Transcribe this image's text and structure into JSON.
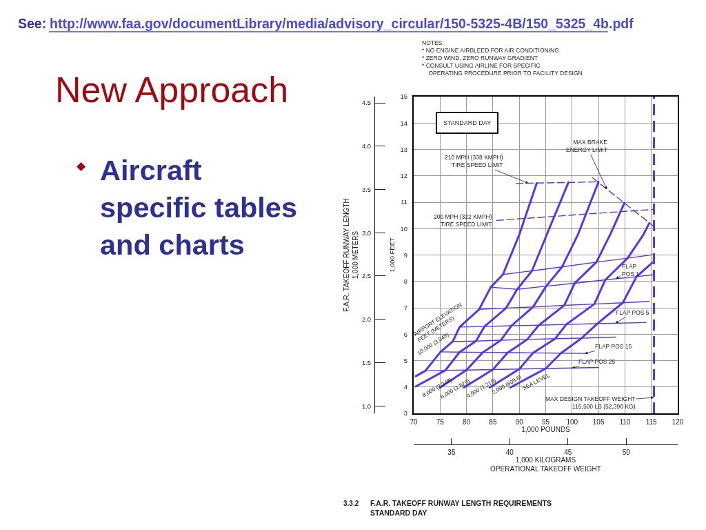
{
  "chart_data": {
    "type": "line",
    "title": "New Approach",
    "xlabel": "1,000 POUNDS",
    "ylabel": "1,000 FEET",
    "y2label": "F.A.R. TAKEOFF RUNWAY LENGTH\n1,000 METERS",
    "x2label": "1,000 KILOGRAMS\nOPERATIONAL TAKEOFF WEIGHT",
    "annotations": [
      "See:",
      "http://www.faa.gov/documentLibrary/media/advisory_circular/150-5325-4B/150_5325_4b.pdf",
      "◆",
      "Aircraft\nspecific tables\nand charts",
      "NOTES:\n* NO ENGINE AIRBLEED FOR AIR CONDITIONING\n* ZERO WIND, ZERO RUNWAY GRADIENT\n* CONSULT USING AIRLINE FOR SPECIFIC\n  OPERATING PROCEDURE PRIOR TO FACILITY DESIGN",
      "STANDARD DAY",
      "AIRPORT ELEVATION\nFEET (METERS)",
      "3.3.2",
      "F.A.R. TAKEOFF RUNWAY LENGTH REQUIREMENTS\nSTANDARD DAY"
    ],
    "xlim": [
      70,
      120
    ],
    "xticks": [
      70,
      75,
      80,
      85,
      90,
      95,
      100,
      105,
      110,
      115,
      120
    ],
    "ylim": [
      3,
      15
    ],
    "yticks": [
      3,
      4,
      5,
      6,
      7,
      8,
      9,
      10,
      11,
      12,
      13,
      14,
      15
    ],
    "y2lim": [
      0.914,
      4.572
    ],
    "y2ticks": [
      {
        "value": 1,
        "label": "1.0"
      },
      1.5,
      {
        "value": 2,
        "label": "2.0"
      },
      2.5,
      {
        "value": 3,
        "label": "3.0"
      },
      3.5,
      {
        "value": 4,
        "label": "4.0"
      },
      4.5
    ],
    "x2lim": [
      31.75,
      54.43
    ],
    "x2ticks": [
      35,
      40,
      45,
      50
    ],
    "grid": true,
    "series": [
      {
        "name": "10,000 (3,048)",
        "color": "#5a35e0",
        "x": [
          70.4,
          72.2,
          75.1,
          77.4,
          78.7,
          82.4,
          84.6,
          86.9,
          90.0,
          93.3
        ],
        "values": [
          4.41,
          4.61,
          5.33,
          5.72,
          6.27,
          6.94,
          7.78,
          8.26,
          9.77,
          11.72
        ]
      },
      {
        "name": "8,000 (2,348)",
        "color": "#5a35e0",
        "x": [
          70.4,
          76.0,
          78.7,
          81.8,
          83.4,
          87.5,
          89.6,
          92.4,
          95.2,
          99.3
        ],
        "values": [
          4.02,
          4.63,
          5.32,
          5.74,
          6.29,
          6.99,
          7.7,
          8.4,
          9.77,
          11.75
        ]
      },
      {
        "name": "6,000 (1,829)",
        "color": "#5a35e0",
        "x": [
          75.0,
          80.0,
          83.1,
          86.5,
          88.5,
          92.6,
          95.1,
          98.1,
          101.1,
          105.0
        ],
        "values": [
          3.98,
          4.64,
          5.31,
          5.77,
          6.32,
          7.03,
          7.82,
          8.55,
          9.77,
          11.77
        ]
      },
      {
        "name": "4,000 (1,219)",
        "color": "#5a35e0",
        "x": [
          79.5,
          85.0,
          87.8,
          91.5,
          93.7,
          98.5,
          100.5,
          104.6,
          107.2,
          109.9
        ],
        "values": [
          3.98,
          4.66,
          5.3,
          5.8,
          6.34,
          7.09,
          7.93,
          8.73,
          9.77,
          10.97
        ]
      },
      {
        "name": "2,000 (609.6)",
        "color": "#5a35e0",
        "x": [
          84.4,
          90.0,
          92.6,
          96.8,
          98.9,
          104.2,
          106.3,
          110.5,
          113.5,
          114.6
        ],
        "values": [
          3.98,
          4.68,
          5.29,
          5.83,
          6.37,
          7.14,
          8.06,
          8.88,
          9.77,
          10.2
        ]
      },
      {
        "name": "SEA LEVEL",
        "color": "#5a35e0",
        "x": [
          88.3,
          95.0,
          97.9,
          101.8,
          104.8,
          109.6,
          112.2,
          115.3
        ],
        "values": [
          3.98,
          4.7,
          5.28,
          5.85,
          6.4,
          7.19,
          8.18,
          8.73
        ]
      },
      {
        "color": "#5a35e0",
        "x": [
          86.9,
          92.4,
          98.1,
          104.6,
          110.5,
          115.3
        ],
        "values": [
          8.26,
          8.4,
          8.55,
          8.73,
          8.88,
          9.01
        ]
      },
      {
        "name": "FLAP\nPOS 1",
        "color": "#5a35e0",
        "x": [
          84.6,
          89.6,
          95.1,
          100.5,
          106.3,
          112.2,
          115.3
        ],
        "values": [
          7.78,
          7.7,
          7.82,
          7.93,
          8.06,
          8.18,
          8.25
        ]
      },
      {
        "color": "#5a35e0",
        "x": [
          82.4,
          87.5,
          92.6,
          98.5,
          104.2,
          109.6,
          114.6
        ],
        "values": [
          6.94,
          6.99,
          7.03,
          7.09,
          7.14,
          7.19,
          7.24
        ]
      },
      {
        "name": "FLAP POS 5",
        "color": "#5a35e0",
        "x": [
          78.7,
          83.4,
          88.5,
          93.7,
          98.9,
          104.8,
          114.0
        ],
        "values": [
          6.27,
          6.29,
          6.32,
          6.34,
          6.37,
          6.4,
          6.44
        ]
      },
      {
        "color": "#5a35e0",
        "x": [
          77.4,
          81.8,
          86.5,
          91.5,
          96.8,
          101.8,
          108.2
        ],
        "values": [
          5.72,
          5.74,
          5.77,
          5.8,
          5.83,
          5.85,
          5.89
        ]
      },
      {
        "name": "FLAP POS 15",
        "color": "#5a35e0",
        "x": [
          75.1,
          78.7,
          83.1,
          87.8,
          92.6,
          97.9,
          102.9
        ],
        "values": [
          5.33,
          5.32,
          5.31,
          5.3,
          5.29,
          5.28,
          5.27
        ]
      },
      {
        "name": "FLAP POS 25",
        "color": "#5a35e0",
        "x": [
          72.2,
          76.0,
          80.0,
          85.0,
          90.0,
          95.0,
          105.0
        ],
        "values": [
          4.61,
          4.63,
          4.64,
          4.66,
          4.68,
          4.7,
          4.74
        ]
      },
      {
        "name": "210 MPH (338 KMPH)\nTIRE SPEED LIMIT",
        "color": "#5a35e0",
        "line_style": "dashed",
        "x": [
          89.4,
          105.0
        ],
        "values": [
          11.71,
          11.77
        ]
      },
      {
        "name": "200 MPH (322 KMPH)\nTIRE SPEED LIMIT",
        "color": "#5a35e0",
        "line_style": "dashed",
        "x": [
          85.7,
          115.5
        ],
        "values": [
          10.31,
          10.73
        ]
      },
      {
        "name": "MAX BRAKE\nENERGY LIMIT",
        "color": "#5a35e0",
        "line_style": "dashed",
        "x": [
          103.9,
          115.5
        ],
        "values": [
          11.92,
          10.08
        ]
      }
    ],
    "ref_lines": [
      {
        "axis": "x",
        "value": 115.5,
        "label": "MAX DESIGN TAKEOFF WEIGHT\n115,500 LB (52,390 KG)",
        "color": "#5a35e0",
        "line_style": "dashed"
      }
    ]
  }
}
